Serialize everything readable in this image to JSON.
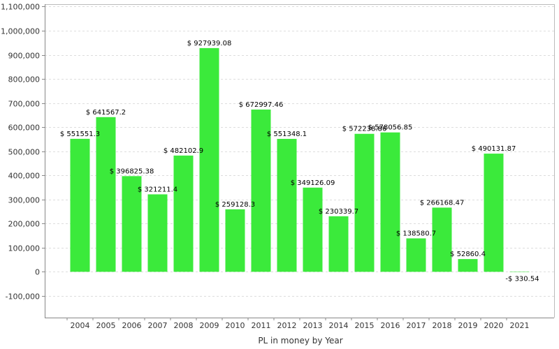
{
  "chart_data": {
    "type": "bar",
    "title": "",
    "xlabel": "PL in money by Year",
    "ylabel": "",
    "ylim": [
      -190000,
      1110000
    ],
    "yticks": [
      -100000,
      0,
      100000,
      200000,
      300000,
      400000,
      500000,
      600000,
      700000,
      800000,
      900000,
      1000000,
      1100000
    ],
    "ytick_labels": [
      "-100,000",
      "0",
      "100,000",
      "200,000",
      "300,000",
      "400,000",
      "500,000",
      "600,000",
      "700,000",
      "800,000",
      "900,000",
      "1,000,000",
      "1,100,000"
    ],
    "grid": true,
    "bar_color": "#3bea3b",
    "categories": [
      "2004",
      "2005",
      "2006",
      "2007",
      "2008",
      "2009",
      "2010",
      "2011",
      "2012",
      "2013",
      "2014",
      "2015",
      "2016",
      "2017",
      "2018",
      "2019",
      "2020",
      "2021"
    ],
    "values": [
      551551.3,
      641567.2,
      396825.38,
      321211.4,
      482102.9,
      927939.08,
      259128.3,
      672997.46,
      551348.1,
      349126.09,
      230339.7,
      572238.86,
      578056.85,
      138580.7,
      266168.47,
      52860.4,
      490131.87,
      -330.54
    ],
    "data_labels": [
      "$ 551551.3",
      "$ 641567.2",
      "$ 396825.38",
      "$ 321211.4",
      "$ 482102.9",
      "$ 927939.08",
      "$ 259128.3",
      "$ 672997.46",
      "$ 551348.1",
      "$ 349126.09",
      "$ 230339.7",
      "$ 572238.86",
      "$ 578056.85",
      "$ 138580.7",
      "$ 266168.47",
      "$ 52860.4",
      "$ 490131.87",
      "-$ 330.54"
    ]
  }
}
